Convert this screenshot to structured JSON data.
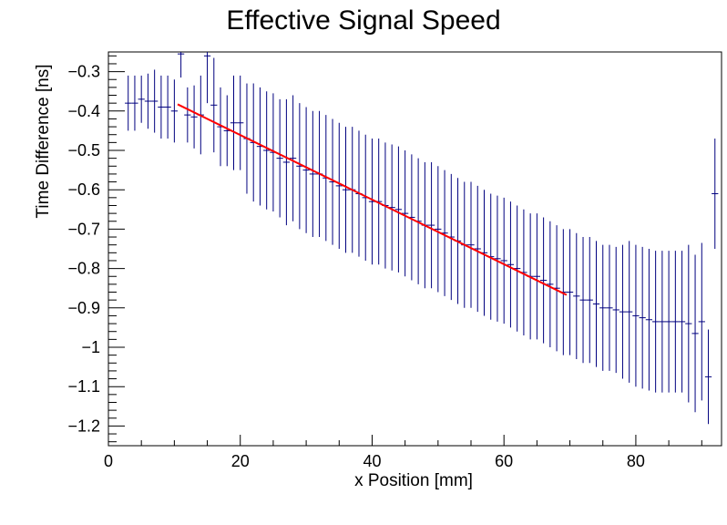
{
  "chart_data": {
    "type": "scatter",
    "title": "Effective Signal Speed",
    "xlabel": "x Position [mm]",
    "ylabel": "Time Difference [ns]",
    "xlim": [
      0,
      93
    ],
    "ylim": [
      -1.25,
      -0.25
    ],
    "x_ticks": [
      {
        "value": 0,
        "label": "0"
      },
      {
        "value": 20,
        "label": "20"
      },
      {
        "value": 40,
        "label": "40"
      },
      {
        "value": 60,
        "label": "60"
      },
      {
        "value": 80,
        "label": "80"
      }
    ],
    "y_ticks": [
      {
        "value": -0.3,
        "label": "−0.3"
      },
      {
        "value": -0.4,
        "label": "−0.4"
      },
      {
        "value": -0.5,
        "label": "−0.5"
      },
      {
        "value": -0.6,
        "label": "−0.6"
      },
      {
        "value": -0.7,
        "label": "−0.7"
      },
      {
        "value": -0.8,
        "label": "−0.8"
      },
      {
        "value": -0.9,
        "label": "−0.9"
      },
      {
        "value": -1.0,
        "label": "−1"
      },
      {
        "value": -1.1,
        "label": "−1.1"
      },
      {
        "value": -1.2,
        "label": "−1.2"
      }
    ],
    "grid": false,
    "legend": "none",
    "colors": {
      "data": "#00007f",
      "fit": "#ff0000"
    },
    "bin_width": 1,
    "series": [
      {
        "type": "errorbar",
        "x": [
          3,
          4,
          5,
          6,
          7,
          8,
          9,
          10,
          11,
          12,
          13,
          14,
          15,
          16,
          17,
          18,
          19,
          20,
          21,
          22,
          23,
          24,
          25,
          26,
          27,
          28,
          29,
          30,
          31,
          32,
          33,
          34,
          35,
          36,
          37,
          38,
          39,
          40,
          41,
          42,
          43,
          44,
          45,
          46,
          47,
          48,
          49,
          50,
          51,
          52,
          53,
          54,
          55,
          56,
          57,
          58,
          59,
          60,
          61,
          62,
          63,
          64,
          65,
          66,
          67,
          68,
          69,
          70,
          71,
          72,
          73,
          74,
          75,
          76,
          77,
          78,
          79,
          80,
          81,
          82,
          83,
          84,
          85,
          86,
          87,
          88,
          89,
          90,
          91,
          92
        ],
        "y": [
          -0.38,
          -0.38,
          -0.37,
          -0.375,
          -0.375,
          -0.39,
          -0.39,
          -0.4,
          -0.255,
          -0.41,
          -0.415,
          -0.41,
          -0.26,
          -0.385,
          -0.44,
          -0.45,
          -0.43,
          -0.43,
          -0.47,
          -0.48,
          -0.49,
          -0.5,
          -0.505,
          -0.52,
          -0.53,
          -0.52,
          -0.54,
          -0.55,
          -0.56,
          -0.56,
          -0.57,
          -0.58,
          -0.59,
          -0.6,
          -0.6,
          -0.61,
          -0.62,
          -0.63,
          -0.63,
          -0.64,
          -0.645,
          -0.65,
          -0.66,
          -0.67,
          -0.68,
          -0.69,
          -0.69,
          -0.7,
          -0.71,
          -0.72,
          -0.73,
          -0.74,
          -0.74,
          -0.75,
          -0.76,
          -0.77,
          -0.775,
          -0.78,
          -0.79,
          -0.8,
          -0.81,
          -0.82,
          -0.82,
          -0.83,
          -0.84,
          -0.85,
          -0.86,
          -0.86,
          -0.87,
          -0.88,
          -0.88,
          -0.89,
          -0.9,
          -0.9,
          -0.905,
          -0.91,
          -0.91,
          -0.92,
          -0.925,
          -0.93,
          -0.935,
          -0.935,
          -0.935,
          -0.935,
          -0.935,
          -0.94,
          -0.965,
          -0.935,
          -1.075,
          -0.61
        ],
        "yerr": [
          0.07,
          0.07,
          0.06,
          0.07,
          0.08,
          0.08,
          0.08,
          0.08,
          0.06,
          0.07,
          0.08,
          0.1,
          0.12,
          0.12,
          0.1,
          0.09,
          0.12,
          0.12,
          0.14,
          0.15,
          0.15,
          0.15,
          0.15,
          0.15,
          0.16,
          0.16,
          0.16,
          0.16,
          0.16,
          0.16,
          0.16,
          0.16,
          0.16,
          0.16,
          0.16,
          0.16,
          0.16,
          0.16,
          0.16,
          0.16,
          0.16,
          0.16,
          0.16,
          0.16,
          0.16,
          0.16,
          0.16,
          0.16,
          0.16,
          0.16,
          0.16,
          0.16,
          0.16,
          0.16,
          0.16,
          0.16,
          0.16,
          0.16,
          0.16,
          0.16,
          0.16,
          0.16,
          0.16,
          0.16,
          0.16,
          0.16,
          0.16,
          0.16,
          0.16,
          0.16,
          0.16,
          0.16,
          0.16,
          0.16,
          0.16,
          0.17,
          0.18,
          0.18,
          0.18,
          0.18,
          0.18,
          0.18,
          0.18,
          0.18,
          0.18,
          0.2,
          0.2,
          0.2,
          0.12,
          0.14
        ]
      },
      {
        "type": "line",
        "x": [
          10.5,
          69.5
        ],
        "y": [
          -0.383,
          -0.867
        ]
      }
    ]
  }
}
